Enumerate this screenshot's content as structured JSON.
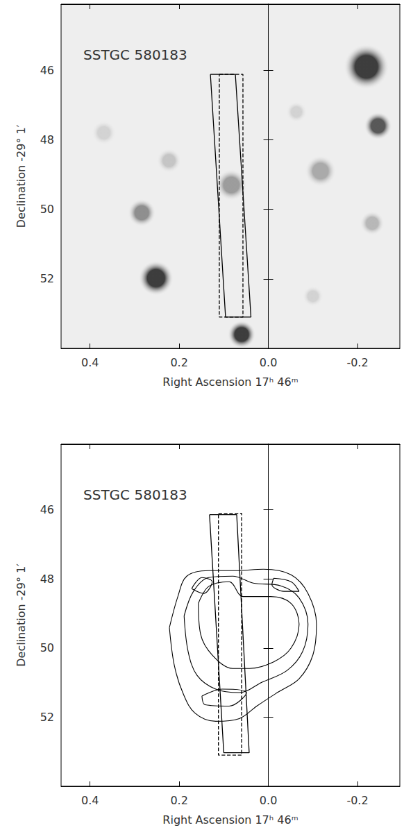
{
  "chart_data": [
    {
      "type": "image",
      "title": "SSTGC 580183",
      "xlabel": "Right Ascension 17ʰ 46ᵐ",
      "ylabel": "Declination -29° 1′",
      "xlim": [
        0.465,
        -0.295
      ],
      "ylim": [
        54.0,
        44.1
      ],
      "xticks": [
        0.4,
        0.2,
        {
          "value": 0,
          "label": "0.0"
        },
        -0.2
      ],
      "yticks": [
        46,
        48,
        50,
        52
      ],
      "sources": {
        "x": [
          -0.22,
          -0.246,
          0.252,
          0.06,
          0.284,
          0.083,
          -0.117,
          0.223,
          -0.233,
          -0.063,
          0.369,
          -0.1
        ],
        "y": [
          45.9,
          47.6,
          51.98,
          53.6,
          50.1,
          49.3,
          48.9,
          48.6,
          50.4,
          47.2,
          47.8,
          52.5
        ],
        "size": [
          1.3,
          0.8,
          1.0,
          0.8,
          0.8,
          0.9,
          0.9,
          0.7,
          0.7,
          0.6,
          0.7,
          0.6
        ],
        "colors": [
          "#111111",
          "#333333",
          "#111111",
          "#111111",
          "#777777",
          "#888888",
          "#999999",
          "#bbbbbb",
          "#aaaaaa",
          "#cccccc",
          "#cccccc",
          "#cccccc"
        ]
      },
      "slits": [
        {
          "line_style": "solid",
          "x": [
            0.13,
            0.074,
            0.039,
            0.096
          ],
          "y": [
            46.12,
            46.12,
            53.1,
            53.1
          ]
        },
        {
          "line_style": "dashed",
          "x": [
            0.11,
            0.057,
            0.057,
            0.11
          ],
          "y": [
            46.12,
            46.12,
            53.1,
            53.1
          ]
        }
      ]
    },
    {
      "type": "contour",
      "title": "SSTGC 580183",
      "xlabel": "Right Ascension 17ʰ 46ᵐ",
      "ylabel": "Declination -29° 1′",
      "xlim": [
        0.465,
        -0.295
      ],
      "ylim": [
        54.0,
        44.1
      ],
      "xticks": [
        0.4,
        0.2,
        {
          "value": 0,
          "label": "0.0"
        },
        -0.2
      ],
      "yticks": [
        46,
        48,
        50,
        52
      ],
      "contours": [
        {
          "x": [
            0.222,
            0.203,
            0.183,
            0.134,
            0.072,
            0.011,
            -0.051,
            -0.089,
            -0.108,
            -0.1,
            -0.069,
            -0.02,
            0.026,
            0.065,
            0.118,
            0.165,
            0.192,
            0.211
          ],
          "y": [
            49.41,
            48.51,
            47.92,
            47.76,
            47.76,
            47.72,
            47.88,
            48.42,
            49.31,
            50.2,
            50.89,
            51.29,
            51.68,
            52.04,
            52.12,
            51.88,
            51.29,
            50.5
          ]
        },
        {
          "x": [
            0.189,
            0.168,
            0.134,
            0.08,
            0.034,
            -0.028,
            -0.069,
            -0.089,
            -0.077,
            -0.042,
            0.014,
            0.065,
            0.118,
            0.16,
            0.18
          ],
          "y": [
            49.07,
            48.36,
            47.96,
            47.92,
            48.12,
            48.2,
            48.55,
            49.31,
            50.1,
            50.65,
            50.99,
            51.29,
            51.19,
            50.79,
            50.1
          ]
        },
        {
          "x": [
            0.157,
            0.134,
            0.088,
            0.057,
            -0.005,
            -0.051,
            -0.069,
            -0.051,
            -0.012,
            0.042,
            0.08,
            0.126,
            0.152
          ],
          "y": [
            48.71,
            48.22,
            48.08,
            48.51,
            48.51,
            48.71,
            49.31,
            50.0,
            50.4,
            50.59,
            50.59,
            50.2,
            49.6
          ]
        },
        {
          "x": [
            0.149,
            0.103,
            0.049,
            0.088,
            0.142
          ],
          "y": [
            51.39,
            51.19,
            51.29,
            51.68,
            51.64
          ]
        },
        {
          "x": [
            -0.012,
            -0.051,
            -0.069,
            -0.035,
            -0.008
          ],
          "y": [
            47.98,
            48.08,
            48.36,
            48.36,
            48.16
          ]
        },
        {
          "x": [
            0.172,
            0.149,
            0.126,
            0.145
          ],
          "y": [
            48.28,
            47.96,
            48.08,
            48.42
          ]
        }
      ],
      "slits": [
        {
          "line_style": "solid",
          "x": [
            0.132,
            0.071,
            0.043,
            0.1
          ],
          "y": [
            46.14,
            46.14,
            53.03,
            53.03
          ]
        },
        {
          "line_style": "dashed",
          "x": [
            0.112,
            0.06,
            0.06,
            0.112
          ],
          "y": [
            46.1,
            46.1,
            53.1,
            53.1
          ]
        }
      ]
    }
  ]
}
